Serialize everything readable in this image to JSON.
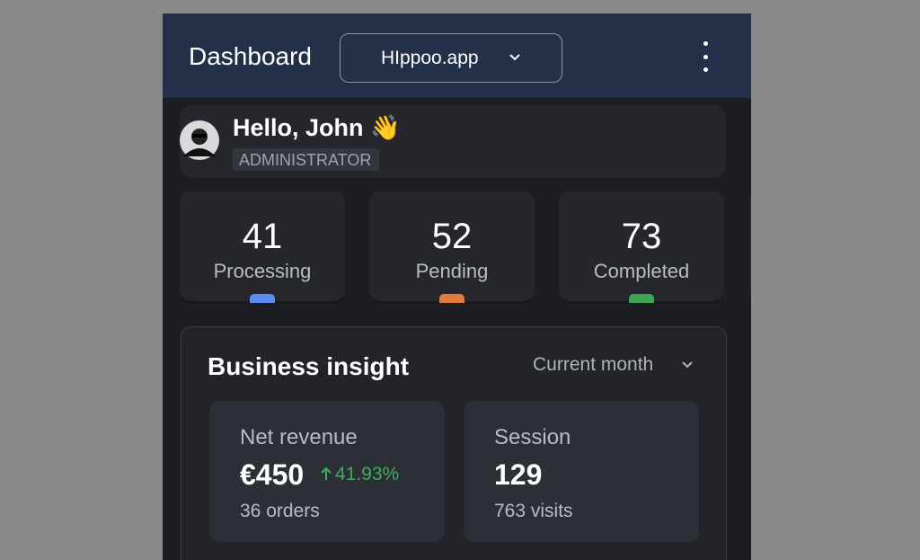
{
  "header": {
    "title": "Dashboard",
    "store": "HIppoo.app"
  },
  "greeting": {
    "text": "Hello, John 👋",
    "role": "ADMINISTRATOR"
  },
  "stats": [
    {
      "value": "41",
      "label": "Processing",
      "color": "#5b8def"
    },
    {
      "value": "52",
      "label": "Pending",
      "color": "#e07b39"
    },
    {
      "value": "73",
      "label": "Completed",
      "color": "#3aa655"
    }
  ],
  "insight": {
    "title": "Business insight",
    "period": "Current month",
    "cards": [
      {
        "label": "Net revenue",
        "value": "€450",
        "change": "41.93%",
        "detail": "36 orders"
      },
      {
        "label": "Session",
        "value": "129",
        "detail": "763 visits"
      }
    ]
  }
}
